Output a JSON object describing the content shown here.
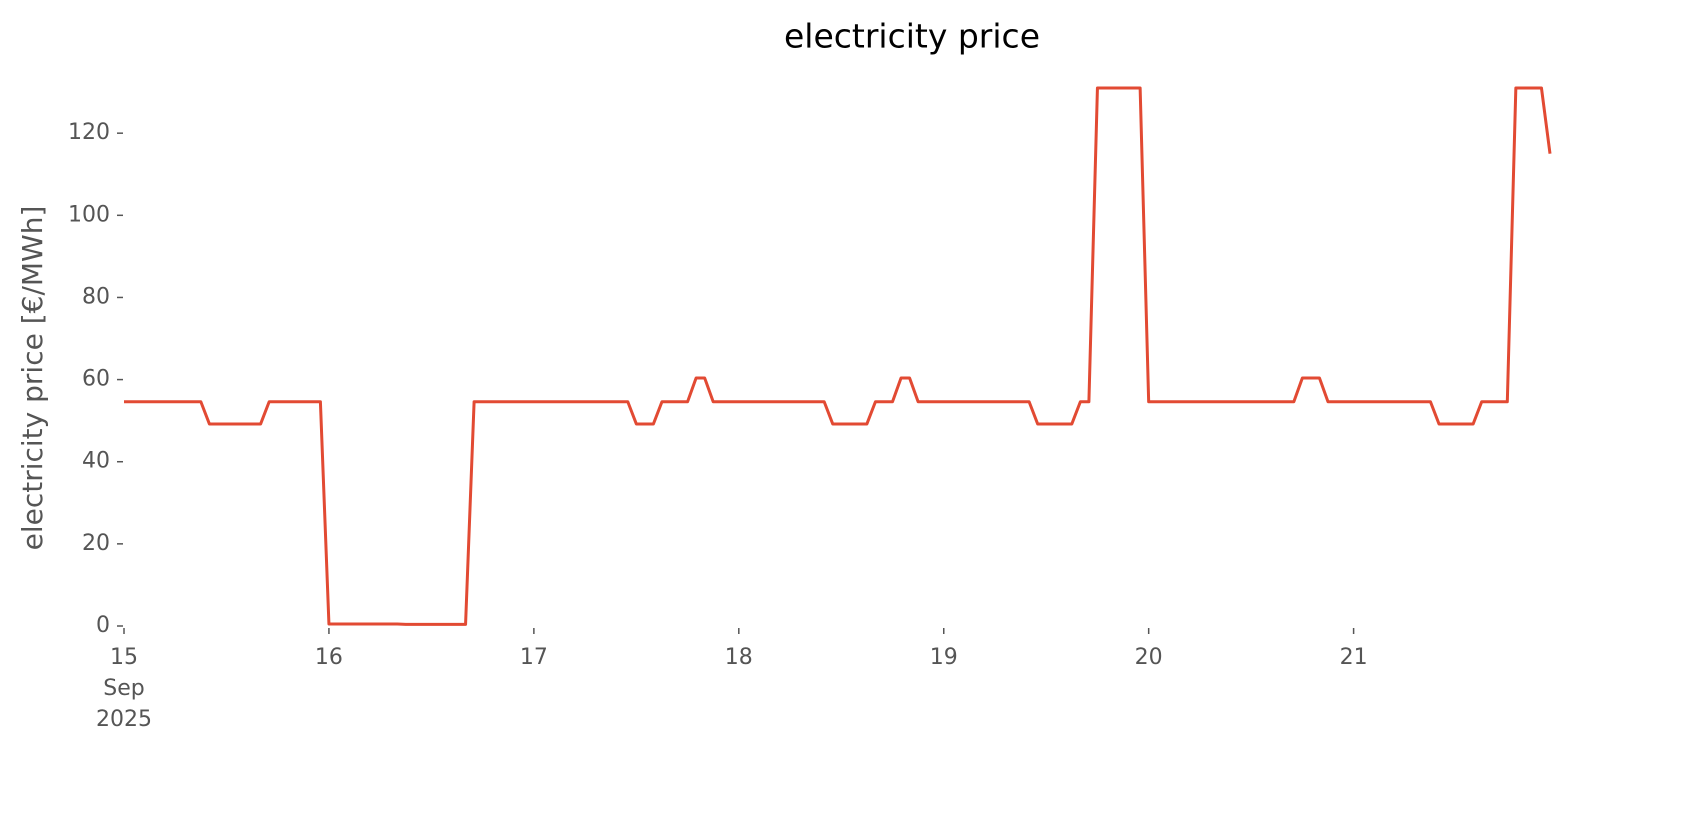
{
  "chart_data": {
    "type": "line",
    "title": "electricity price",
    "y_label": "electricity price [€/MWh]",
    "x": [
      "2025-09-15 00:00",
      "2025-09-15 01:00",
      "2025-09-15 02:00",
      "2025-09-15 03:00",
      "2025-09-15 04:00",
      "2025-09-15 05:00",
      "2025-09-15 06:00",
      "2025-09-15 07:00",
      "2025-09-15 08:00",
      "2025-09-15 09:00",
      "2025-09-15 10:00",
      "2025-09-15 11:00",
      "2025-09-15 12:00",
      "2025-09-15 13:00",
      "2025-09-15 14:00",
      "2025-09-15 15:00",
      "2025-09-15 16:00",
      "2025-09-15 17:00",
      "2025-09-15 18:00",
      "2025-09-15 19:00",
      "2025-09-15 20:00",
      "2025-09-15 21:00",
      "2025-09-15 22:00",
      "2025-09-15 23:00",
      "2025-09-16 00:00",
      "2025-09-16 01:00",
      "2025-09-16 02:00",
      "2025-09-16 03:00",
      "2025-09-16 04:00",
      "2025-09-16 05:00",
      "2025-09-16 06:00",
      "2025-09-16 07:00",
      "2025-09-16 08:00",
      "2025-09-16 09:00",
      "2025-09-16 10:00",
      "2025-09-16 11:00",
      "2025-09-16 12:00",
      "2025-09-16 13:00",
      "2025-09-16 14:00",
      "2025-09-16 15:00",
      "2025-09-16 16:00",
      "2025-09-16 17:00",
      "2025-09-16 18:00",
      "2025-09-16 19:00",
      "2025-09-16 20:00",
      "2025-09-16 21:00",
      "2025-09-16 22:00",
      "2025-09-16 23:00",
      "2025-09-17 00:00",
      "2025-09-17 01:00",
      "2025-09-17 02:00",
      "2025-09-17 03:00",
      "2025-09-17 04:00",
      "2025-09-17 05:00",
      "2025-09-17 06:00",
      "2025-09-17 07:00",
      "2025-09-17 08:00",
      "2025-09-17 09:00",
      "2025-09-17 10:00",
      "2025-09-17 11:00",
      "2025-09-17 12:00",
      "2025-09-17 13:00",
      "2025-09-17 14:00",
      "2025-09-17 15:00",
      "2025-09-17 16:00",
      "2025-09-17 17:00",
      "2025-09-17 18:00",
      "2025-09-17 19:00",
      "2025-09-17 20:00",
      "2025-09-17 21:00",
      "2025-09-17 22:00",
      "2025-09-17 23:00",
      "2025-09-18 00:00",
      "2025-09-18 01:00",
      "2025-09-18 02:00",
      "2025-09-18 03:00",
      "2025-09-18 04:00",
      "2025-09-18 05:00",
      "2025-09-18 06:00",
      "2025-09-18 07:00",
      "2025-09-18 08:00",
      "2025-09-18 09:00",
      "2025-09-18 10:00",
      "2025-09-18 11:00",
      "2025-09-18 12:00",
      "2025-09-18 13:00",
      "2025-09-18 14:00",
      "2025-09-18 15:00",
      "2025-09-18 16:00",
      "2025-09-18 17:00",
      "2025-09-18 18:00",
      "2025-09-18 19:00",
      "2025-09-18 20:00",
      "2025-09-18 21:00",
      "2025-09-18 22:00",
      "2025-09-18 23:00",
      "2025-09-19 00:00",
      "2025-09-19 01:00",
      "2025-09-19 02:00",
      "2025-09-19 03:00",
      "2025-09-19 04:00",
      "2025-09-19 05:00",
      "2025-09-19 06:00",
      "2025-09-19 07:00",
      "2025-09-19 08:00",
      "2025-09-19 09:00",
      "2025-09-19 10:00",
      "2025-09-19 11:00",
      "2025-09-19 12:00",
      "2025-09-19 13:00",
      "2025-09-19 14:00",
      "2025-09-19 15:00",
      "2025-09-19 16:00",
      "2025-09-19 17:00",
      "2025-09-19 18:00",
      "2025-09-19 19:00",
      "2025-09-19 20:00",
      "2025-09-19 21:00",
      "2025-09-19 22:00",
      "2025-09-19 23:00",
      "2025-09-20 00:00",
      "2025-09-20 01:00",
      "2025-09-20 02:00",
      "2025-09-20 03:00",
      "2025-09-20 04:00",
      "2025-09-20 05:00",
      "2025-09-20 06:00",
      "2025-09-20 07:00",
      "2025-09-20 08:00",
      "2025-09-20 09:00",
      "2025-09-20 10:00",
      "2025-09-20 11:00",
      "2025-09-20 12:00",
      "2025-09-20 13:00",
      "2025-09-20 14:00",
      "2025-09-20 15:00",
      "2025-09-20 16:00",
      "2025-09-20 17:00",
      "2025-09-20 18:00",
      "2025-09-20 19:00",
      "2025-09-20 20:00",
      "2025-09-20 21:00",
      "2025-09-20 22:00",
      "2025-09-20 23:00",
      "2025-09-21 00:00",
      "2025-09-21 01:00",
      "2025-09-21 02:00",
      "2025-09-21 03:00",
      "2025-09-21 04:00",
      "2025-09-21 05:00",
      "2025-09-21 06:00",
      "2025-09-21 07:00",
      "2025-09-21 08:00",
      "2025-09-21 09:00",
      "2025-09-21 10:00",
      "2025-09-21 11:00",
      "2025-09-21 12:00",
      "2025-09-21 13:00",
      "2025-09-21 14:00",
      "2025-09-21 15:00",
      "2025-09-21 16:00",
      "2025-09-21 17:00",
      "2025-09-21 18:00",
      "2025-09-21 19:00",
      "2025-09-21 20:00",
      "2025-09-21 21:00",
      "2025-09-21 22:00",
      "2025-09-21 23:00"
    ],
    "series": [
      {
        "name": "electricity price",
        "color": "#e24a33",
        "values": [
          54.6,
          54.6,
          54.6,
          54.6,
          54.6,
          54.6,
          54.6,
          54.6,
          54.6,
          54.6,
          49.2,
          49.2,
          49.2,
          49.2,
          49.2,
          49.2,
          49.2,
          54.6,
          54.6,
          54.6,
          54.6,
          54.6,
          54.6,
          54.6,
          0.5,
          0.5,
          0.5,
          0.5,
          0.5,
          0.5,
          0.5,
          0.5,
          0.5,
          0.4,
          0.4,
          0.4,
          0.4,
          0.4,
          0.4,
          0.4,
          0.4,
          54.6,
          54.6,
          54.6,
          54.6,
          54.6,
          54.6,
          54.6,
          54.6,
          54.6,
          54.6,
          54.6,
          54.6,
          54.6,
          54.6,
          54.6,
          54.6,
          54.6,
          54.6,
          54.6,
          49.2,
          49.2,
          49.2,
          54.6,
          54.6,
          54.6,
          54.6,
          60.4,
          60.4,
          54.6,
          54.6,
          54.6,
          54.6,
          54.6,
          54.6,
          54.6,
          54.6,
          54.6,
          54.6,
          54.6,
          54.6,
          54.6,
          54.6,
          49.2,
          49.2,
          49.2,
          49.2,
          49.2,
          54.6,
          54.6,
          54.6,
          60.4,
          60.4,
          54.6,
          54.6,
          54.6,
          54.6,
          54.6,
          54.6,
          54.6,
          54.6,
          54.6,
          54.6,
          54.6,
          54.6,
          54.6,
          54.6,
          49.2,
          49.2,
          49.2,
          49.2,
          49.2,
          54.6,
          54.6,
          131,
          131,
          131,
          131,
          131,
          131,
          54.6,
          54.6,
          54.6,
          54.6,
          54.6,
          54.6,
          54.6,
          54.6,
          54.6,
          54.6,
          54.6,
          54.6,
          54.6,
          54.6,
          54.6,
          54.6,
          54.6,
          54.6,
          60.4,
          60.4,
          60.4,
          54.6,
          54.6,
          54.6,
          54.6,
          54.6,
          54.6,
          54.6,
          54.6,
          54.6,
          54.6,
          54.6,
          54.6,
          54.6,
          49.2,
          49.2,
          49.2,
          49.2,
          49.2,
          54.6,
          54.6,
          54.6,
          54.6,
          131,
          131,
          131,
          131,
          115
        ]
      }
    ],
    "xlim": [
      "2025-09-15 00:00",
      "2025-09-21 23:00"
    ],
    "xticks": [
      {
        "value": "2025-09-15 00:00",
        "label": "15\nSep\n2025"
      },
      {
        "value": "2025-09-16 00:00",
        "label": "16"
      },
      {
        "value": "2025-09-17 00:00",
        "label": "17"
      },
      {
        "value": "2025-09-18 00:00",
        "label": "18"
      },
      {
        "value": "2025-09-19 00:00",
        "label": "19"
      },
      {
        "value": "2025-09-20 00:00",
        "label": "20"
      },
      {
        "value": "2025-09-21 00:00",
        "label": "21"
      }
    ],
    "ylim": [
      0,
      131
    ],
    "yticks": [
      0,
      20,
      40,
      60,
      80,
      100,
      120
    ],
    "grid": false
  }
}
